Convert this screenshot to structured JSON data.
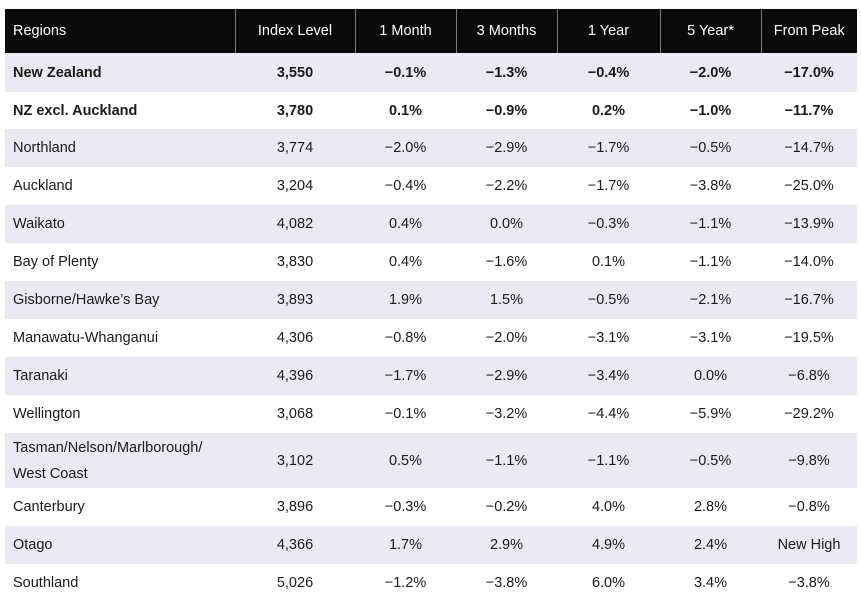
{
  "headers": [
    "Regions",
    "Index Level",
    "1 Month",
    "3 Months",
    "1 Year",
    "5 Year*",
    "From Peak"
  ],
  "rows": [
    [
      "New Zealand",
      "3,550",
      "−0.1%",
      "−1.3%",
      "−0.4%",
      "−2.0%",
      "−17.0%"
    ],
    [
      "NZ excl. Auckland",
      "3,780",
      "0.1%",
      "−0.9%",
      "0.2%",
      "−1.0%",
      "−11.7%"
    ],
    [
      "Northland",
      "3,774",
      "−2.0%",
      "−2.9%",
      "−1.7%",
      "−0.5%",
      "−14.7%"
    ],
    [
      "Auckland",
      "3,204",
      "−0.4%",
      "−2.2%",
      "−1.7%",
      "−3.8%",
      "−25.0%"
    ],
    [
      "Waikato",
      "4,082",
      "0.4%",
      "0.0%",
      "−0.3%",
      "−1.1%",
      "−13.9%"
    ],
    [
      "Bay of Plenty",
      "3,830",
      "0.4%",
      "−1.6%",
      "0.1%",
      "−1.1%",
      "−14.0%"
    ],
    [
      "Gisborne/Hawke’s Bay",
      "3,893",
      "1.9%",
      "1.5%",
      "−0.5%",
      "−2.1%",
      "−16.7%"
    ],
    [
      "Manawatu-Whanganui",
      "4,306",
      "−0.8%",
      "−2.0%",
      "−3.1%",
      "−3.1%",
      "−19.5%"
    ],
    [
      "Taranaki",
      "4,396",
      "−1.7%",
      "−2.9%",
      "−3.4%",
      "0.0%",
      "−6.8%"
    ],
    [
      "Wellington",
      "3,068",
      "−0.1%",
      "−3.2%",
      "−4.4%",
      "−5.9%",
      "−29.2%"
    ],
    [
      "Tasman/Nelson/Marlborough/\nWest Coast",
      "3,102",
      "0.5%",
      "−1.1%",
      "−1.1%",
      "−0.5%",
      "−9.8%"
    ],
    [
      "Canterbury",
      "3,896",
      "−0.3%",
      "−0.2%",
      "4.0%",
      "2.8%",
      "−0.8%"
    ],
    [
      "Otago",
      "4,366",
      "1.7%",
      "2.9%",
      "4.9%",
      "2.4%",
      "New High"
    ],
    [
      "Southland",
      "5,026",
      "−1.2%",
      "−3.8%",
      "6.0%",
      "3.4%",
      "−3.8%"
    ]
  ],
  "colors": {
    "header_bg": "#0a0a0a",
    "header_text": "#ffffff",
    "shaded_row_bg": "#ebe9f3",
    "body_text": "#1a1a1a"
  }
}
